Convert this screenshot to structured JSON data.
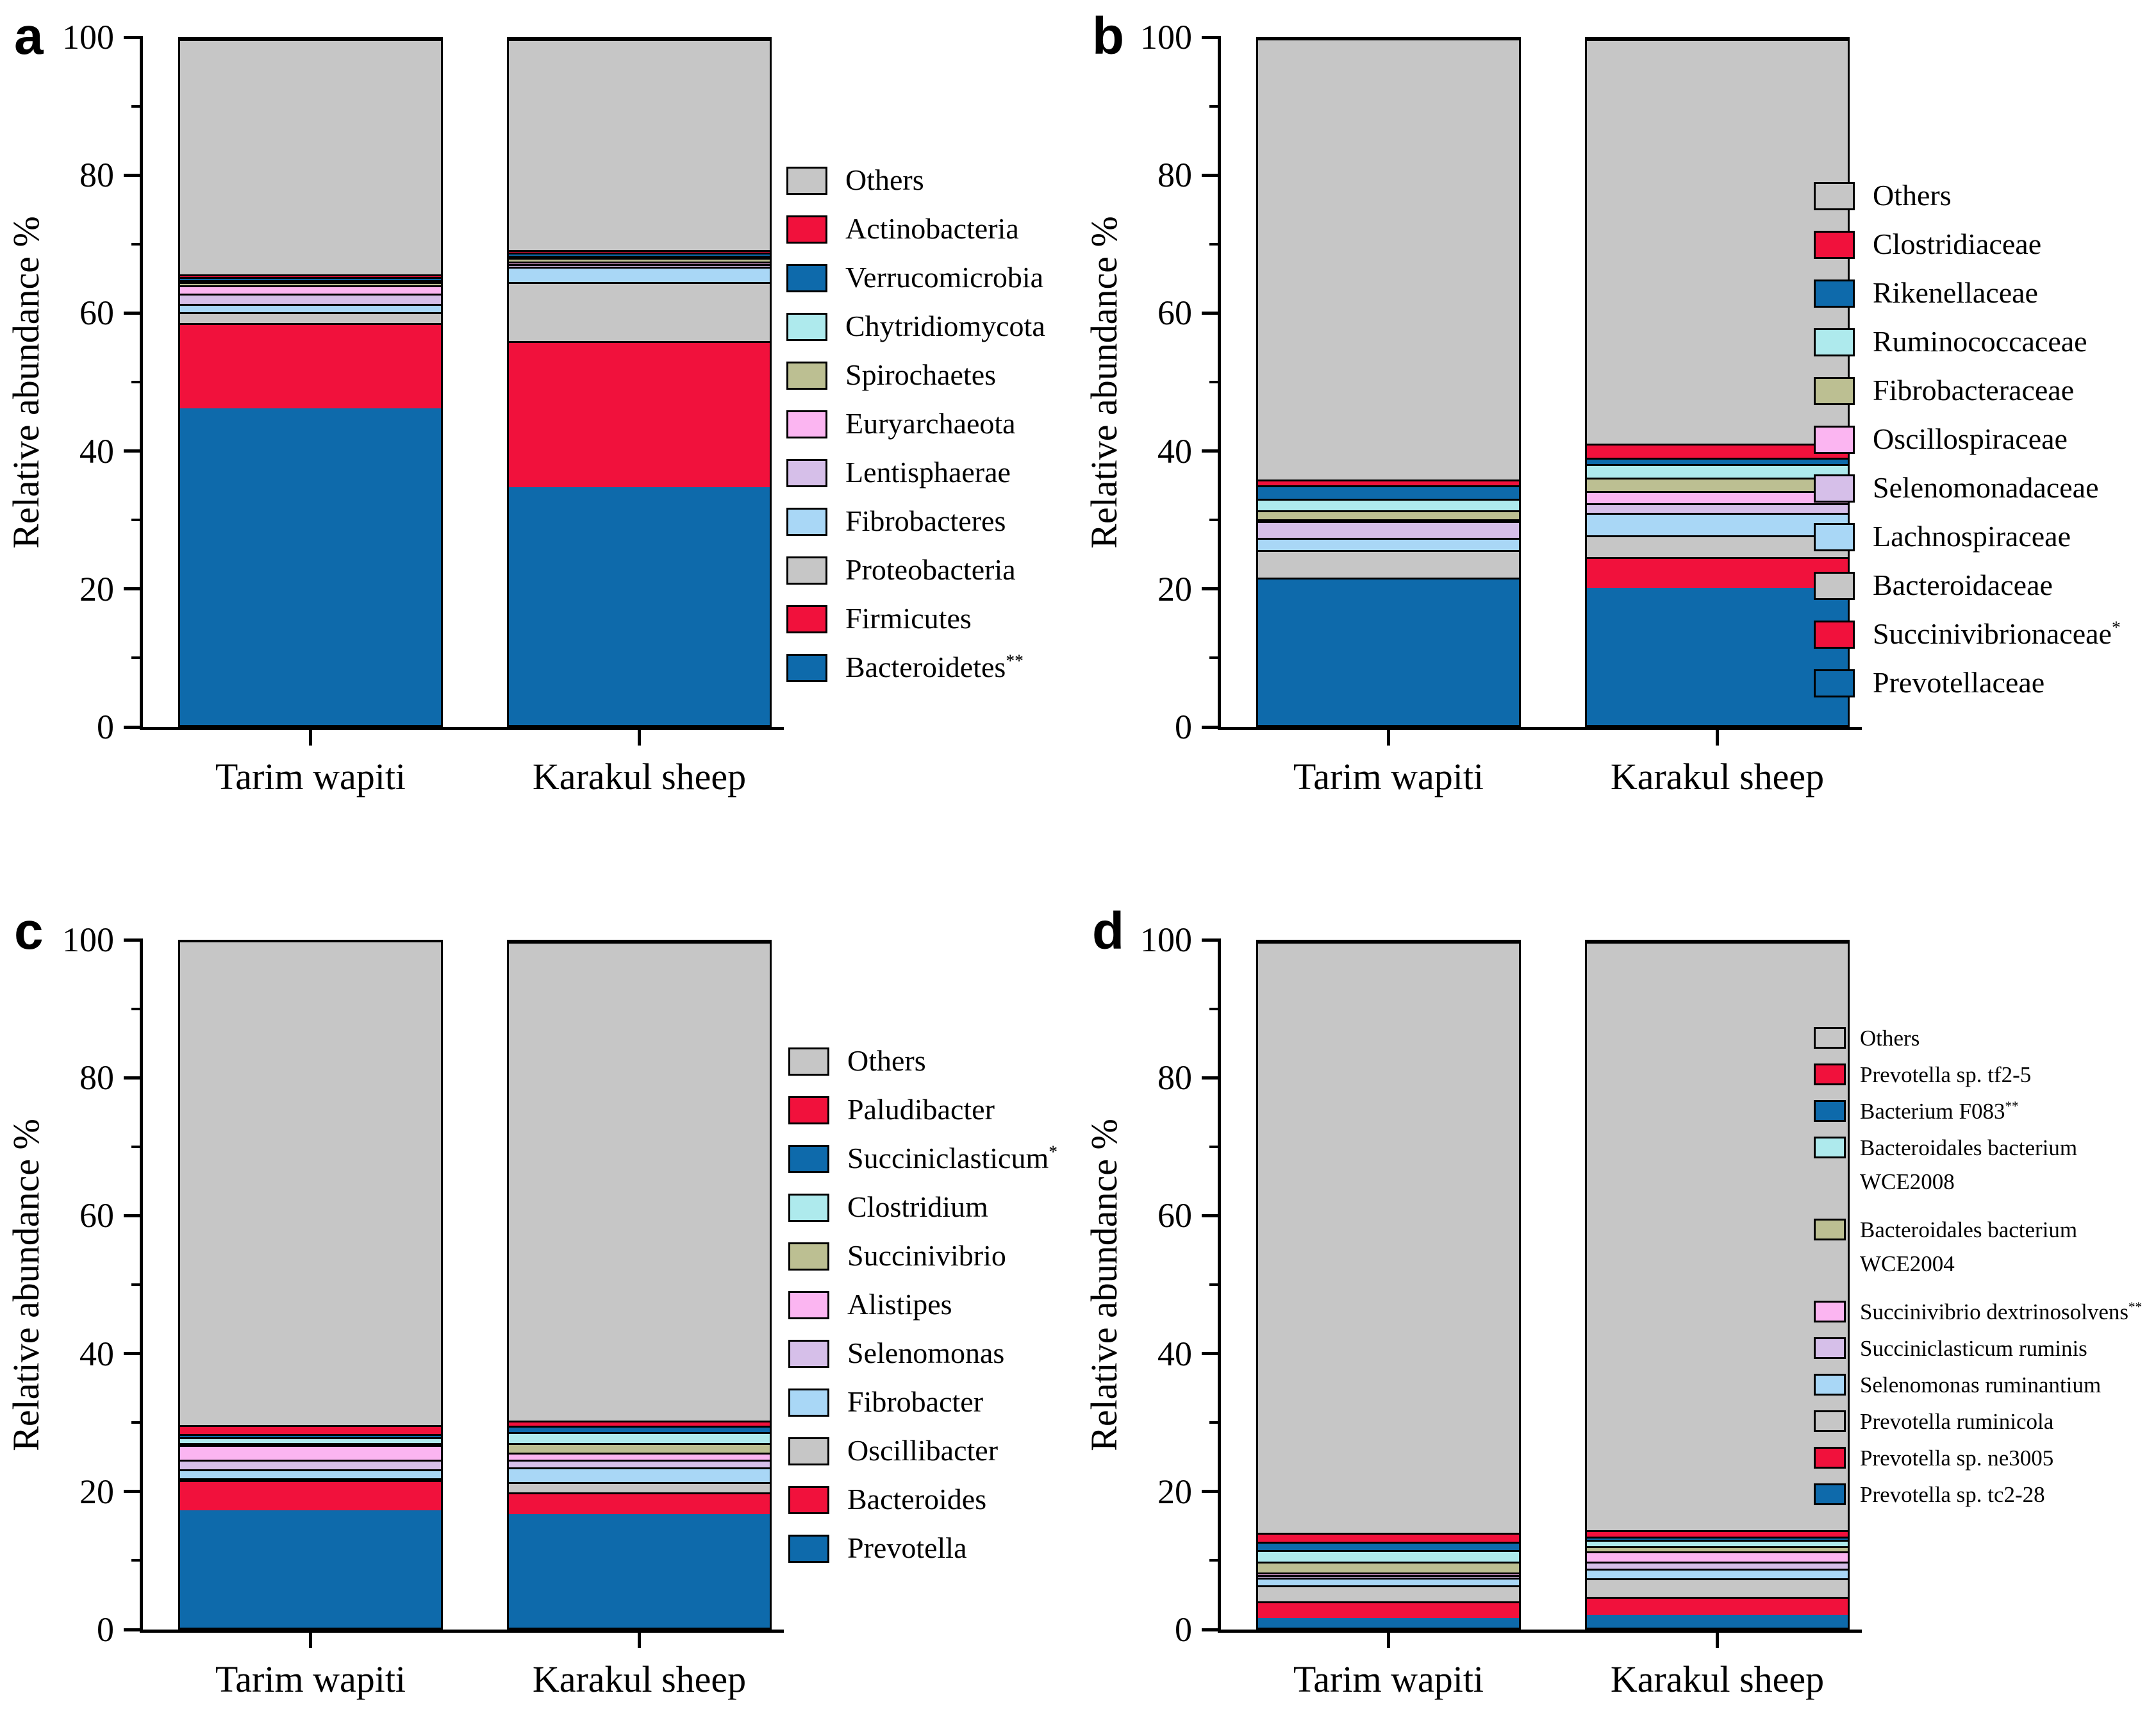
{
  "figure": {
    "y_axis_label": "Relative abundance %",
    "categories": [
      "Tarim wapiti",
      "Karakul sheep"
    ],
    "y_ticks": [
      0,
      20,
      40,
      60,
      80,
      100
    ],
    "y_minor_ticks": [
      10,
      30,
      50,
      70,
      90
    ],
    "colors": {
      "blue": "#0e6aab",
      "red": "#f1113c",
      "gray": "#c6c6c6",
      "pale_cyan": "#aeeaed",
      "olive": "#bcbf92",
      "pink": "#fbb5f1",
      "lavender": "#d6bfe9",
      "light_blue": "#a9d7f6"
    }
  },
  "chart_data": [
    {
      "panel": "a",
      "type": "stacked_bar",
      "ylabel": "Relative abundance %",
      "ylim": [
        0,
        100
      ],
      "grid": false,
      "legend_position": "right",
      "categories": [
        "Tarim wapiti",
        "Karakul sheep"
      ],
      "series": [
        {
          "name": "Others",
          "sup": "",
          "color": "#c6c6c6",
          "values": [
            34.3,
            30.7
          ]
        },
        {
          "name": "Actinobacteria",
          "sup": "",
          "color": "#f1113c",
          "values": [
            0.4,
            0.4
          ]
        },
        {
          "name": "Verrucomicrobia",
          "sup": "",
          "color": "#0e6aab",
          "values": [
            0.4,
            0.5
          ]
        },
        {
          "name": "Chytridiomycota",
          "sup": "",
          "color": "#aeeaed",
          "values": [
            0.3,
            0.3
          ]
        },
        {
          "name": "Spirochaetes",
          "sup": "",
          "color": "#bcbf92",
          "values": [
            0.5,
            0.5
          ]
        },
        {
          "name": "Euryarchaeota",
          "sup": "",
          "color": "#fbb5f1",
          "values": [
            1.2,
            0.4
          ]
        },
        {
          "name": "Lentisphaerae",
          "sup": "",
          "color": "#d6bfe9",
          "values": [
            1.5,
            0.4
          ]
        },
        {
          "name": "Fibrobacteres",
          "sup": "",
          "color": "#a9d7f6",
          "values": [
            1.2,
            2.2
          ]
        },
        {
          "name": "Proteobacteria",
          "sup": "",
          "color": "#c6c6c6",
          "values": [
            1.6,
            8.6
          ]
        },
        {
          "name": "Firmicutes",
          "sup": "",
          "color": "#f1113c",
          "values": [
            12.4,
            21.3
          ]
        },
        {
          "name": "Bacteroidetes",
          "sup": "**",
          "color": "#0e6aab",
          "values": [
            46.2,
            34.7
          ]
        }
      ]
    },
    {
      "panel": "b",
      "type": "stacked_bar",
      "ylabel": "Relative abundance %",
      "ylim": [
        0,
        100
      ],
      "grid": false,
      "legend_position": "right",
      "categories": [
        "Tarim wapiti",
        "Karakul sheep"
      ],
      "series": [
        {
          "name": "Others",
          "sup": "",
          "color": "#c6c6c6",
          "values": [
            64.3,
            59.0
          ]
        },
        {
          "name": "Clostridiaceae",
          "sup": "",
          "color": "#f1113c",
          "values": [
            0.8,
            2.0
          ]
        },
        {
          "name": "Rikenellaceae",
          "sup": "",
          "color": "#0e6aab",
          "values": [
            2.0,
            1.0
          ]
        },
        {
          "name": "Ruminococcaceae",
          "sup": "",
          "color": "#aeeaed",
          "values": [
            1.7,
            1.9
          ]
        },
        {
          "name": "Fibrobacteraceae",
          "sup": "",
          "color": "#bcbf92",
          "values": [
            1.3,
            2.0
          ]
        },
        {
          "name": "Oscillospiraceae",
          "sup": "",
          "color": "#fbb5f1",
          "values": [
            0.2,
            1.8
          ]
        },
        {
          "name": "Selenomonadaceae",
          "sup": "",
          "color": "#d6bfe9",
          "values": [
            2.4,
            1.4
          ]
        },
        {
          "name": "Lachnospiraceae",
          "sup": "",
          "color": "#a9d7f6",
          "values": [
            1.8,
            3.2
          ]
        },
        {
          "name": "Bacteroidaceae",
          "sup": "",
          "color": "#c6c6c6",
          "values": [
            4.0,
            3.2
          ]
        },
        {
          "name": "Succinivibrionaceae",
          "sup": "*",
          "color": "#f1113c",
          "values": [
            0.3,
            4.5
          ]
        },
        {
          "name": "Prevotellaceae",
          "sup": "",
          "color": "#0e6aab",
          "values": [
            21.2,
            20.0
          ]
        }
      ]
    },
    {
      "panel": "c",
      "type": "stacked_bar",
      "ylabel": "Relative abundance %",
      "ylim": [
        0,
        100
      ],
      "grid": false,
      "legend_position": "right",
      "categories": [
        "Tarim wapiti",
        "Karakul sheep"
      ],
      "series": [
        {
          "name": "Others",
          "sup": "",
          "color": "#c6c6c6",
          "values": [
            70.6,
            69.8
          ]
        },
        {
          "name": "Paludibacter",
          "sup": "",
          "color": "#f1113c",
          "values": [
            1.3,
            0.8
          ]
        },
        {
          "name": "Succiniclasticum",
          "sup": "*",
          "color": "#0e6aab",
          "values": [
            0.5,
            0.9
          ]
        },
        {
          "name": "Clostridium",
          "sup": "",
          "color": "#aeeaed",
          "values": [
            0.8,
            1.6
          ]
        },
        {
          "name": "Succinivibrio",
          "sup": "",
          "color": "#bcbf92",
          "values": [
            0.2,
            1.4
          ]
        },
        {
          "name": "Alistipes",
          "sup": "",
          "color": "#fbb5f1",
          "values": [
            2.2,
            1.0
          ]
        },
        {
          "name": "Selenomonas",
          "sup": "",
          "color": "#d6bfe9",
          "values": [
            1.4,
            1.1
          ]
        },
        {
          "name": "Fibrobacter",
          "sup": "",
          "color": "#a9d7f6",
          "values": [
            1.3,
            2.2
          ]
        },
        {
          "name": "Oscillibacter",
          "sup": "",
          "color": "#c6c6c6",
          "values": [
            0.2,
            1.5
          ]
        },
        {
          "name": "Bacteroides",
          "sup": "",
          "color": "#f1113c",
          "values": [
            4.4,
            3.2
          ]
        },
        {
          "name": "Prevotella",
          "sup": "",
          "color": "#0e6aab",
          "values": [
            17.1,
            16.5
          ]
        }
      ]
    },
    {
      "panel": "d",
      "type": "stacked_bar",
      "ylabel": "Relative abundance %",
      "ylim": [
        0,
        100
      ],
      "grid": false,
      "legend_position": "right",
      "categories": [
        "Tarim wapiti",
        "Karakul sheep"
      ],
      "series": [
        {
          "name": "Others",
          "sup": "",
          "color": "#c6c6c6",
          "values": [
            86.2,
            85.8
          ]
        },
        {
          "name": "Prevotella sp. tf2-5",
          "sup": "",
          "color": "#f1113c",
          "values": [
            1.3,
            0.9
          ]
        },
        {
          "name": "Bacterium F083",
          "sup": "**",
          "color": "#0e6aab",
          "values": [
            1.2,
            0.5
          ]
        },
        {
          "name": "Bacteroidales bacterium",
          "name2": "WCE2008",
          "sup": "",
          "color": "#aeeaed",
          "values": [
            1.7,
            0.9
          ]
        },
        {
          "name": "Bacteroidales bacterium",
          "name2": "WCE2004",
          "sup": "",
          "color": "#bcbf92",
          "values": [
            1.6,
            0.8
          ]
        },
        {
          "name": "Succinivibrio dextrinosolvens",
          "sup": "**",
          "color": "#fbb5f1",
          "values": [
            0.3,
            1.5
          ]
        },
        {
          "name": "Succiniclasticum ruminis",
          "sup": "",
          "color": "#d6bfe9",
          "values": [
            0.4,
            1.0
          ]
        },
        {
          "name": "Selenomonas ruminantium",
          "sup": "",
          "color": "#a9d7f6",
          "values": [
            1.1,
            1.4
          ]
        },
        {
          "name": "Prevotella ruminicola",
          "sup": "",
          "color": "#c6c6c6",
          "values": [
            2.4,
            2.7
          ]
        },
        {
          "name": "Prevotella sp. ne3005",
          "sup": "",
          "color": "#f1113c",
          "values": [
            2.4,
            2.6
          ]
        },
        {
          "name": "Prevotella sp. tc2-28",
          "sup": "",
          "color": "#0e6aab",
          "values": [
            1.4,
            1.9
          ]
        }
      ]
    }
  ]
}
